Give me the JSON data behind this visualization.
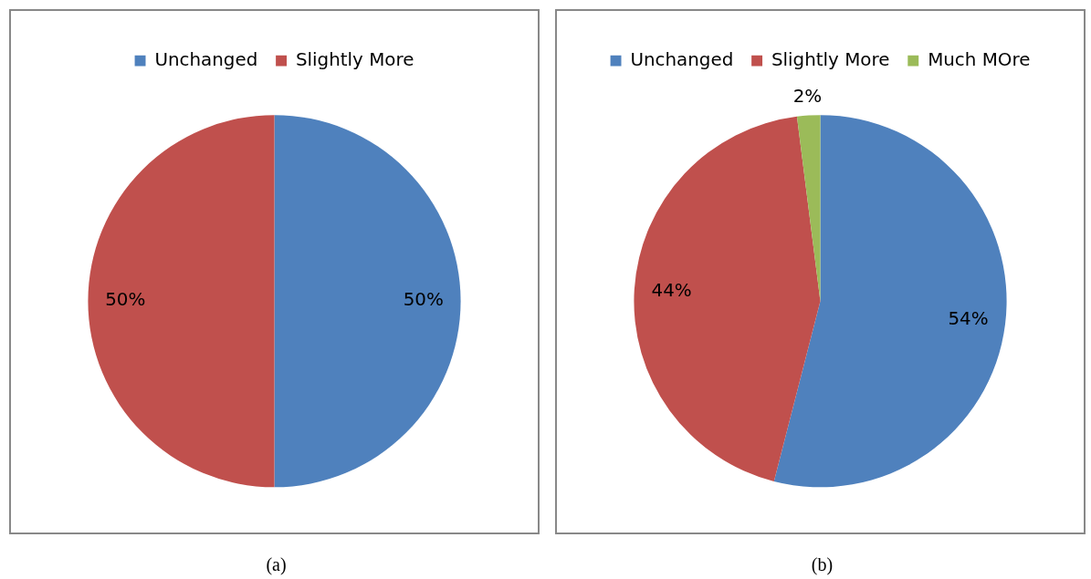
{
  "chart_data": [
    {
      "type": "pie",
      "categories": [
        "Unchanged",
        "Slightly More"
      ],
      "values": [
        50,
        50
      ],
      "colors": [
        "#4f81bd",
        "#c0504d"
      ],
      "value_labels": [
        "50%",
        "50%"
      ],
      "legend": "top",
      "annotations": [
        "(a)"
      ]
    },
    {
      "type": "pie",
      "categories": [
        "Unchanged",
        "Slightly More",
        "Much MOre"
      ],
      "values": [
        54,
        44,
        2
      ],
      "colors": [
        "#4f81bd",
        "#c0504d",
        "#9bbb59"
      ],
      "value_labels": [
        "54%",
        "44%",
        "2%"
      ],
      "legend": "top",
      "annotations": [
        "(b)"
      ]
    }
  ]
}
